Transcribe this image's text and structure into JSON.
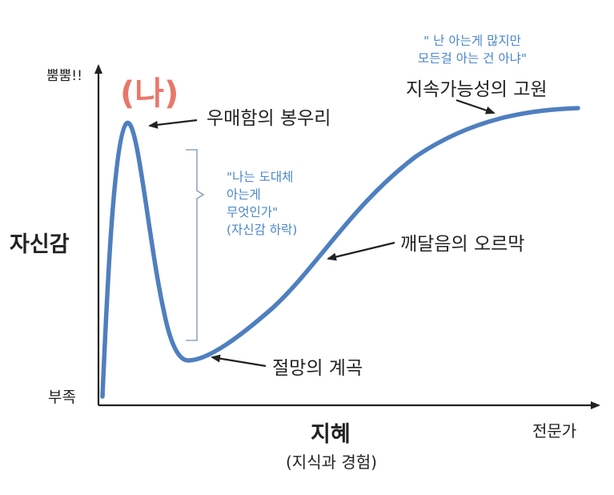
{
  "diagram": {
    "tag_label": "(나)",
    "y_axis": {
      "top_label": "뿜뿜!!",
      "title": "자신감",
      "bottom_label": "부족"
    },
    "x_axis": {
      "title": "지혜",
      "subtitle": "(지식과 경험)",
      "end_label": "전문가"
    },
    "stages": {
      "peak": "우매함의 봉우리",
      "valley": "절망의 계곡",
      "slope": "깨달음의 오르막",
      "plateau": "지속가능성의 고원"
    },
    "quotes": {
      "top": [
        "\" 난 아는게 많지만",
        "모든걸 아는 건 아냐\""
      ],
      "middle": [
        "\"나는 도대체",
        "아는게",
        "무엇인가\"",
        "(자신감 하락)"
      ]
    },
    "colors": {
      "curve": "#4f7fbf",
      "quote_text": "#4a86c8",
      "tag": "#e8776a",
      "axis": "#222222",
      "bracket": "#8fa6bf"
    }
  }
}
